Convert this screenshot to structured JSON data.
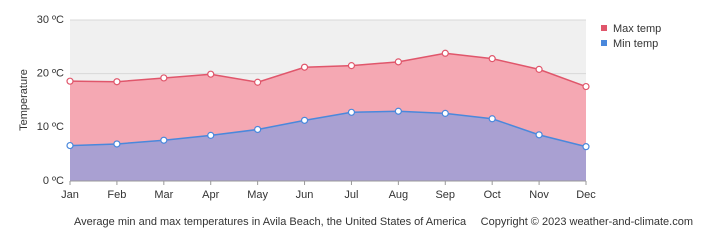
{
  "chart_data": {
    "type": "area",
    "y_label": "Temperature",
    "caption": "Average min and max temperatures in Avila Beach, the United States of America",
    "copyright": "Copyright © 2023  weather-and-climate.com",
    "categories": [
      "Jan",
      "Feb",
      "Mar",
      "Apr",
      "May",
      "Jun",
      "Jul",
      "Aug",
      "Sep",
      "Oct",
      "Nov",
      "Dec"
    ],
    "series": [
      {
        "name": "Max temp",
        "color": "#e0566b",
        "fill": "#f5a8b3",
        "values": [
          18.6,
          18.5,
          19.2,
          19.9,
          18.4,
          21.2,
          21.5,
          22.2,
          23.8,
          22.8,
          20.8,
          17.6
        ]
      },
      {
        "name": "Min temp",
        "color": "#4a88dc",
        "fill": "#a9a0d2",
        "values": [
          6.6,
          6.9,
          7.6,
          8.5,
          9.6,
          11.3,
          12.8,
          13.0,
          12.6,
          11.6,
          8.6,
          6.4
        ]
      }
    ],
    "ylim": [
      0,
      30
    ],
    "yticks": [
      {
        "value": 0,
        "label": "0 ºC"
      },
      {
        "value": 10,
        "label": "10 ºC"
      },
      {
        "value": 20,
        "label": "20 ºC"
      },
      {
        "value": 30,
        "label": "30 ºC"
      }
    ],
    "grid": true
  }
}
